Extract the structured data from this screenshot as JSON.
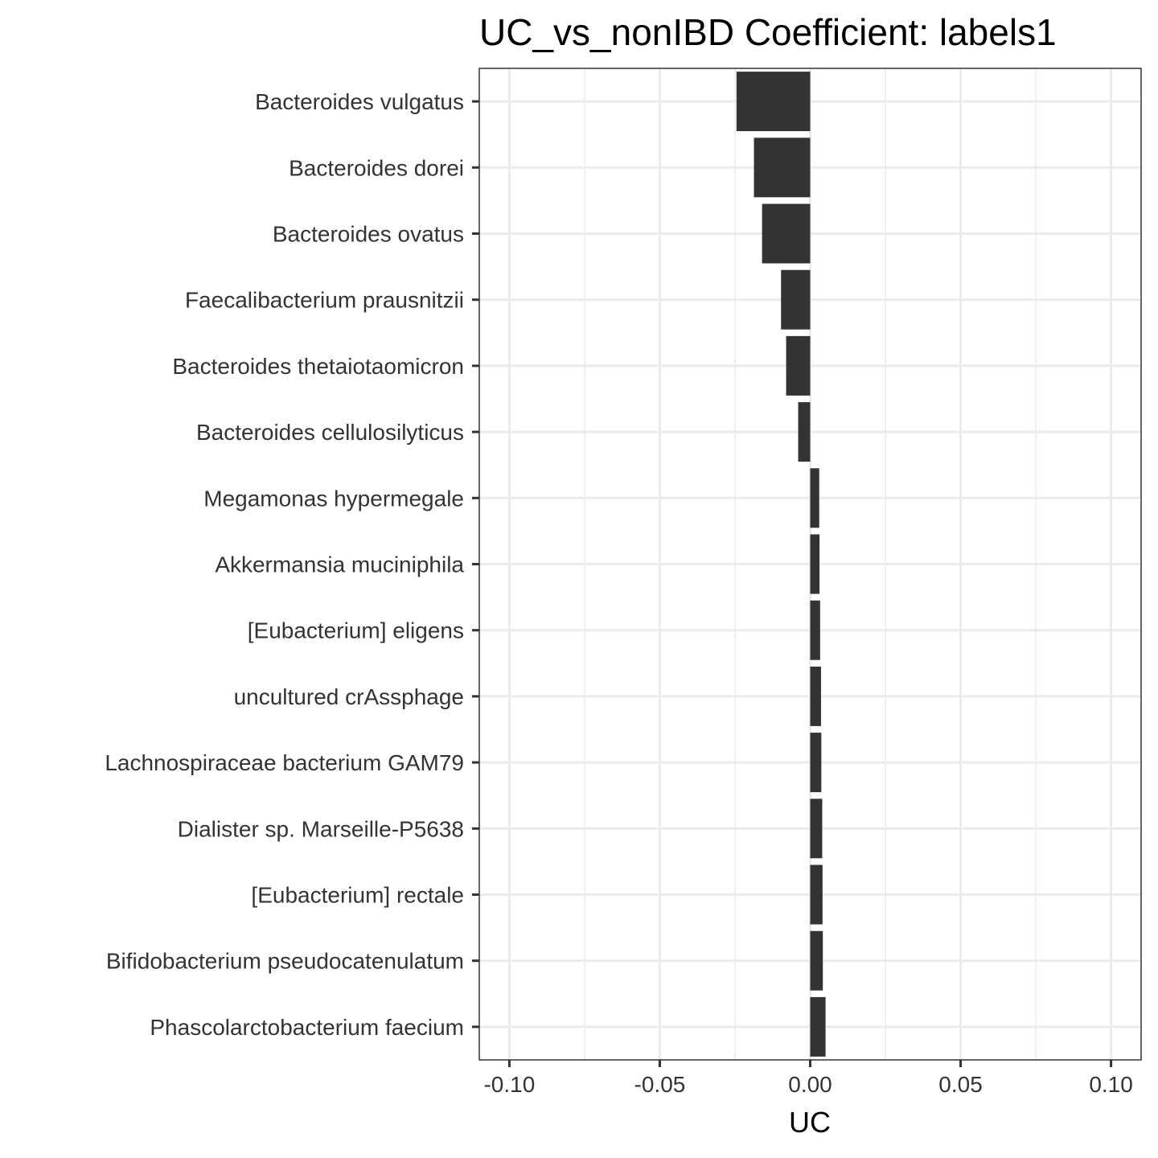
{
  "chart_data": {
    "type": "bar",
    "orientation": "horizontal",
    "title": "UC_vs_nonIBD Coefficient: labels1",
    "xlabel": "UC",
    "ylabel": "",
    "xlim": [
      -0.11,
      0.11
    ],
    "x_ticks": [
      -0.1,
      -0.05,
      0.0,
      0.05,
      0.1
    ],
    "x_tick_labels": [
      "-0.10",
      "-0.05",
      "0.00",
      "0.05",
      "0.10"
    ],
    "grid": true,
    "bar_color": "#333333",
    "categories": [
      "Bacteroides vulgatus",
      "Bacteroides dorei",
      "Bacteroides ovatus",
      "Faecalibacterium prausnitzii",
      "Bacteroides thetaiotaomicron",
      "Bacteroides cellulosilyticus",
      "Megamonas hypermegale",
      "Akkermansia muciniphila",
      "[Eubacterium] eligens",
      "uncultured crAssphage",
      "Lachnospiraceae bacterium GAM79",
      "Dialister sp. Marseille-P5638",
      "[Eubacterium] rectale",
      "Bifidobacterium pseudocatenulatum",
      "Phascolarctobacterium faecium"
    ],
    "values": [
      -0.0245,
      -0.0187,
      -0.016,
      -0.0097,
      -0.008,
      -0.004,
      0.003,
      0.0031,
      0.0033,
      0.0036,
      0.0037,
      0.004,
      0.0041,
      0.0042,
      0.0051
    ]
  }
}
